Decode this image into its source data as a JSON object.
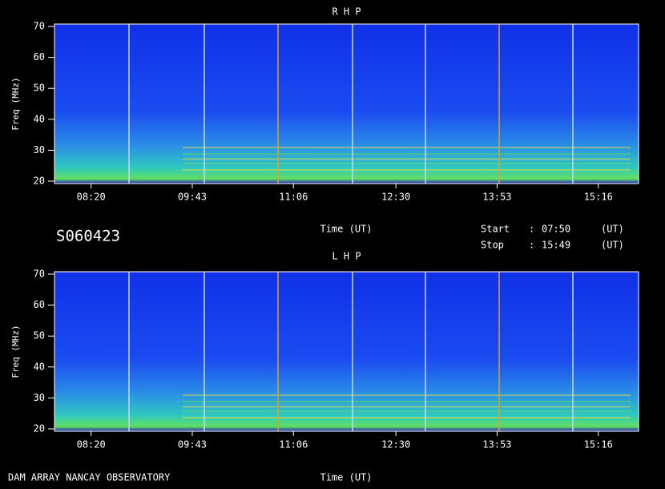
{
  "chart_data": [
    {
      "type": "spectrogram",
      "title": "R H P",
      "ylabel": "Freq (MHz)",
      "xlabel": "Time (UT)",
      "ylim": [
        20,
        70
      ],
      "yticks": [
        20,
        30,
        40,
        50,
        60,
        70
      ],
      "xticks": [
        "08:20",
        "09:43",
        "11:06",
        "12:30",
        "13:53",
        "15:16"
      ]
    },
    {
      "type": "spectrogram",
      "title": "L H P",
      "ylabel": "Freq (MHz)",
      "xlabel": "Time (UT)",
      "ylim": [
        20,
        70
      ],
      "yticks": [
        20,
        30,
        40,
        50,
        60,
        70
      ],
      "xticks": [
        "08:20",
        "09:43",
        "11:06",
        "12:30",
        "13:53",
        "15:16"
      ]
    }
  ],
  "id": "S060423",
  "start_label": "Start",
  "start": "07:50",
  "stop_label": "Stop",
  "stop": "15:49",
  "separator": ":",
  "unit": "(UT)",
  "footer": "DAM ARRAY  NANCAY OBSERVATORY"
}
